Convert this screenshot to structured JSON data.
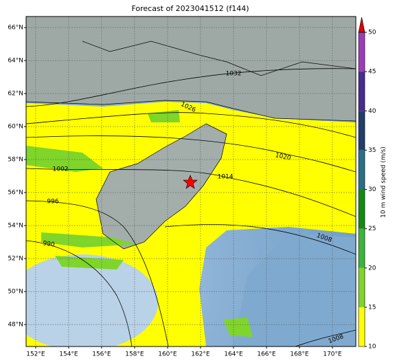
{
  "title": "Forecast of 2023041512 (f144)",
  "map": {
    "lon_range": [
      151.42,
      171.42
    ],
    "lat_range": [
      46.67,
      66.67
    ],
    "lon_ticks": [
      {
        "value": 152,
        "label": "152°E"
      },
      {
        "value": 154,
        "label": "154°E"
      },
      {
        "value": 156,
        "label": "156°E"
      },
      {
        "value": 158,
        "label": "158°E"
      },
      {
        "value": 160,
        "label": "160°E"
      },
      {
        "value": 162,
        "label": "162°E"
      },
      {
        "value": 164,
        "label": "164°E"
      },
      {
        "value": 166,
        "label": "166°E"
      },
      {
        "value": 168,
        "label": "168°E"
      },
      {
        "value": 170,
        "label": "170°E"
      }
    ],
    "lat_ticks": [
      {
        "value": 48,
        "label": "48°N"
      },
      {
        "value": 50,
        "label": "50°N"
      },
      {
        "value": 52,
        "label": "52°N"
      },
      {
        "value": 54,
        "label": "54°N"
      },
      {
        "value": 56,
        "label": "56°N"
      },
      {
        "value": 58,
        "label": "58°N"
      },
      {
        "value": 60,
        "label": "60°N"
      },
      {
        "value": 62,
        "label": "62°N"
      },
      {
        "value": 64,
        "label": "64°N"
      },
      {
        "value": 66,
        "label": "66°N"
      }
    ],
    "grid": true
  },
  "isobar_labels": [
    1032,
    1026,
    1020,
    1014,
    1002,
    996,
    990,
    1008,
    1008
  ],
  "colorbar": {
    "label": "10 m wind speed (m/s)",
    "range": [
      10,
      50
    ],
    "ticks": [
      10,
      15,
      20,
      25,
      30,
      35,
      40,
      45,
      50
    ],
    "colors": [
      "#ffff00",
      "#7fd52a",
      "#3cb43c",
      "#128a12",
      "#2a6f86",
      "#223e6a",
      "#4a2b8f",
      "#9b3db8"
    ],
    "extend_color": "#e00000"
  }
}
